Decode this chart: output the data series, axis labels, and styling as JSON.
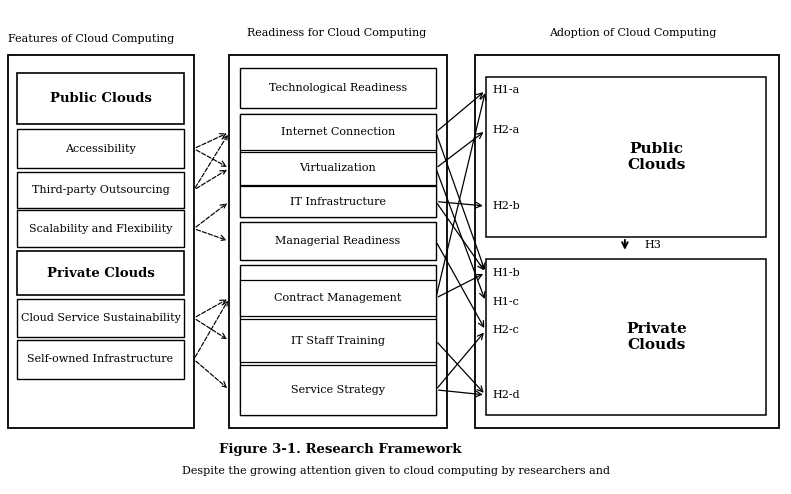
{
  "title": "Figure 3-1. Research Framework",
  "col1_title": "Features of Cloud Computing",
  "col2_title": "Readiness for Cloud Computing",
  "col3_title": "Adoption of Cloud Computing",
  "bg_color": "#ffffff",
  "text_color": "#000000",
  "footer_text": "Despite the growing attention given to cloud computing by researchers and"
}
